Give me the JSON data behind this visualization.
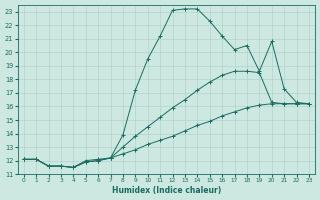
{
  "title": "",
  "xlabel": "Humidex (Indice chaleur)",
  "ylabel": "",
  "bg_color": "#cce8e0",
  "line_color": "#1a6b60",
  "grid_color": "#b0d4cc",
  "xlim": [
    -0.5,
    23.5
  ],
  "ylim": [
    11,
    23.5
  ],
  "xticks": [
    0,
    1,
    2,
    3,
    4,
    5,
    6,
    7,
    8,
    9,
    10,
    11,
    12,
    13,
    14,
    15,
    16,
    17,
    18,
    19,
    20,
    21,
    22,
    23
  ],
  "yticks": [
    11,
    12,
    13,
    14,
    15,
    16,
    17,
    18,
    19,
    20,
    21,
    22,
    23
  ],
  "curve1_x": [
    0,
    1,
    2,
    3,
    4,
    5,
    6,
    7,
    8,
    9,
    10,
    11,
    12,
    13,
    14,
    15,
    16,
    17,
    18,
    19,
    20,
    21,
    22,
    23
  ],
  "curve1_y": [
    12.1,
    12.1,
    11.6,
    11.6,
    11.5,
    12.0,
    12.1,
    12.2,
    13.9,
    17.2,
    19.5,
    21.2,
    23.1,
    23.2,
    23.2,
    22.3,
    21.2,
    20.2,
    20.5,
    18.6,
    20.8,
    17.3,
    16.3,
    16.2
  ],
  "curve2_x": [
    0,
    1,
    2,
    3,
    4,
    5,
    6,
    7,
    8,
    9,
    10,
    11,
    12,
    13,
    14,
    15,
    16,
    17,
    18,
    19,
    20,
    21,
    22,
    23
  ],
  "curve2_y": [
    12.1,
    12.1,
    11.6,
    11.6,
    11.5,
    11.9,
    12.0,
    12.2,
    13.0,
    13.8,
    14.5,
    15.2,
    15.9,
    16.5,
    17.2,
    17.8,
    18.3,
    18.6,
    18.6,
    18.5,
    16.3,
    16.2,
    16.2,
    16.2
  ],
  "curve3_x": [
    0,
    1,
    2,
    3,
    4,
    5,
    6,
    7,
    8,
    9,
    10,
    11,
    12,
    13,
    14,
    15,
    16,
    17,
    18,
    19,
    20,
    21,
    22,
    23
  ],
  "curve3_y": [
    12.1,
    12.1,
    11.6,
    11.6,
    11.5,
    11.9,
    12.0,
    12.2,
    12.5,
    12.8,
    13.2,
    13.5,
    13.8,
    14.2,
    14.6,
    14.9,
    15.3,
    15.6,
    15.9,
    16.1,
    16.2,
    16.2,
    16.2,
    16.2
  ]
}
